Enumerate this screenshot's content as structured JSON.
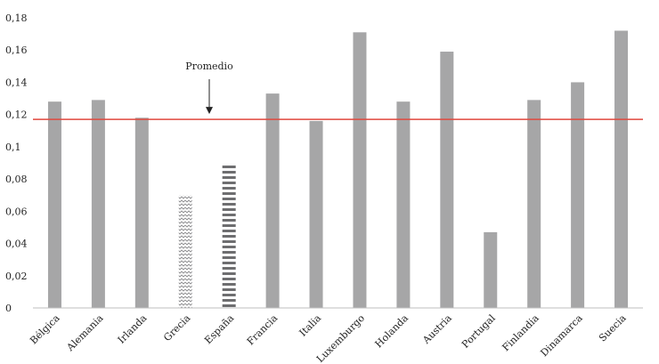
{
  "chart_data": {
    "type": "bar",
    "title": "",
    "xlabel": "",
    "ylabel": "",
    "ylim": [
      0,
      0.18
    ],
    "yticks": [
      "0",
      "0,02",
      "0,04",
      "0,06",
      "0,08",
      "0,1",
      "0,12",
      "0,14",
      "0,16",
      "0,18"
    ],
    "categories": [
      "Bélgica",
      "Alemania",
      "Irlanda",
      "Grecia",
      "España",
      "Francia",
      "Italia",
      "Luxemburgo",
      "Holanda",
      "Austria",
      "Portugal",
      "Finlandia",
      "Dinamarca",
      "Suecia"
    ],
    "values": [
      0.128,
      0.129,
      0.118,
      0.07,
      0.089,
      0.133,
      0.116,
      0.171,
      0.128,
      0.159,
      0.047,
      0.129,
      0.14,
      0.172
    ],
    "bar_styles": [
      "solid",
      "solid",
      "solid",
      "zigzag",
      "striped",
      "solid",
      "solid",
      "solid",
      "solid",
      "solid",
      "solid",
      "solid",
      "solid",
      "solid"
    ],
    "reference_line": {
      "value": 0.117,
      "color": "#e0483e"
    },
    "annotation": {
      "text": "Promedio",
      "arrow": "down"
    },
    "grid": false,
    "legend": "none",
    "colors": {
      "bar": "#a6a6a7",
      "pattern": "#6e6e70",
      "axis": "#bfbfbf"
    }
  }
}
